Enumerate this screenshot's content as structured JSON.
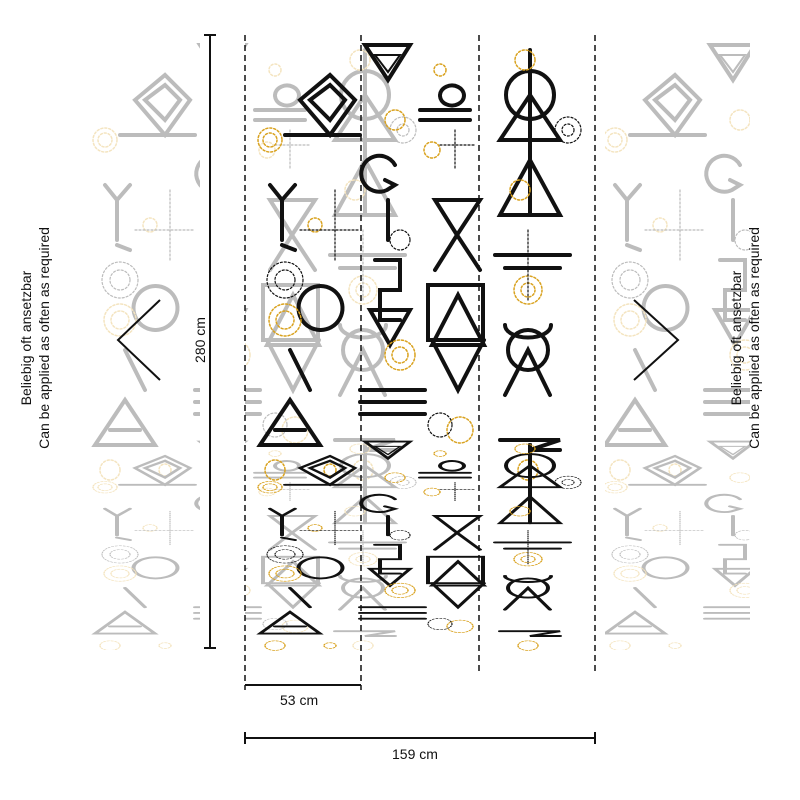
{
  "dimensions": {
    "height_label": "280 cm",
    "strip_width_label": "53 cm",
    "total_width_label": "159 cm"
  },
  "repeat_note": {
    "line1": "Beliebig oft ansetzbar",
    "line2": "Can be applied as often as required"
  },
  "colors": {
    "ink": "#111111",
    "accent_gold": "#d9a21f",
    "faded": "#bdbdbd"
  }
}
